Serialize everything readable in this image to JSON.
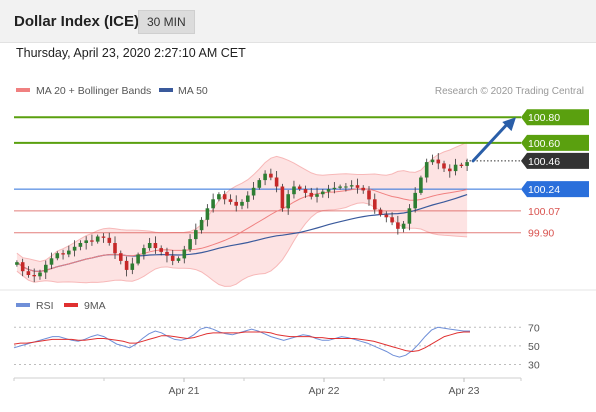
{
  "header": {
    "title": "Dollar Index (ICE)",
    "timeframe": "30 MIN",
    "timestamp": "Thursday, April 23, 2020 2:27:10 AM CET"
  },
  "colors": {
    "candle_up": "#2e7d32",
    "candle_down": "#c62828",
    "bollinger_fill": "#fde0e0",
    "ma20": "#f08080",
    "ma50": "#3a5a9c",
    "target_level": "#5aa00f",
    "pivot_level": "#2a6fdb",
    "support_level": "#d9534f",
    "current_price": "#333333",
    "arrow": "#2a5ea8",
    "rsi": "#6f8fd8",
    "rsi_ma": "#e03030"
  },
  "chart_data": [
    {
      "type": "candlestick",
      "legend": [
        {
          "name": "MA 20 + Bollinger Bands",
          "color": "#f08080"
        },
        {
          "name": "MA 50",
          "color": "#3a5a9c"
        }
      ],
      "credit": "Research © 2020 Trading Central",
      "x_ticks": [
        "Apr 21",
        "Apr 22",
        "Apr 23"
      ],
      "ylim": [
        99.5,
        100.95
      ],
      "close_series": [
        99.67,
        99.6,
        99.57,
        99.56,
        99.59,
        99.65,
        99.7,
        99.74,
        99.73,
        99.76,
        99.79,
        99.82,
        99.84,
        99.83,
        99.87,
        99.86,
        99.82,
        99.74,
        99.68,
        99.61,
        99.66,
        99.73,
        99.78,
        99.82,
        99.78,
        99.75,
        99.72,
        99.68,
        99.7,
        99.77,
        99.85,
        99.92,
        100.0,
        100.09,
        100.16,
        100.2,
        100.16,
        100.14,
        100.11,
        100.14,
        100.19,
        100.25,
        100.31,
        100.36,
        100.33,
        100.26,
        100.09,
        100.2,
        100.26,
        100.24,
        100.21,
        100.18,
        100.2,
        100.22,
        100.24,
        100.25,
        100.26,
        100.26,
        100.27,
        100.25,
        100.23,
        100.16,
        100.08,
        100.04,
        100.02,
        99.98,
        99.93,
        99.97,
        100.09,
        100.21,
        100.33,
        100.45,
        100.47,
        100.44,
        100.4,
        100.38,
        100.43,
        100.42,
        100.45
      ],
      "current_price": 100.46,
      "arrow_target": 100.8,
      "levels": [
        {
          "value": 100.8,
          "label": "100.80",
          "kind": "target"
        },
        {
          "value": 100.6,
          "label": "100.60",
          "kind": "target"
        },
        {
          "value": 100.46,
          "label": "100.46",
          "kind": "current"
        },
        {
          "value": 100.24,
          "label": "100.24",
          "kind": "pivot"
        },
        {
          "value": 100.07,
          "label": "100.07",
          "kind": "support"
        },
        {
          "value": 99.9,
          "label": "99.90",
          "kind": "support"
        }
      ]
    },
    {
      "type": "line",
      "legend": [
        {
          "name": "RSI",
          "color": "#6f8fd8"
        },
        {
          "name": "9MA",
          "color": "#e03030"
        }
      ],
      "y_ticks": [
        70,
        50,
        30
      ],
      "ylim": [
        22,
        80
      ],
      "series": [
        {
          "name": "RSI",
          "values": [
            48,
            50,
            52,
            54,
            56,
            58,
            60,
            60,
            58,
            56,
            55,
            57,
            60,
            62,
            60,
            56,
            52,
            50,
            48,
            52,
            58,
            63,
            66,
            64,
            60,
            57,
            56,
            58,
            62,
            68,
            70,
            68,
            65,
            63,
            62,
            64,
            66,
            68,
            66,
            63,
            60,
            58,
            56,
            58,
            60,
            62,
            61,
            58,
            56,
            56,
            58,
            60,
            59,
            57,
            55,
            53,
            50,
            47,
            44,
            40,
            38,
            40,
            45,
            52,
            60,
            67,
            70,
            69,
            68,
            67,
            66,
            66
          ]
        },
        {
          "name": "9MA",
          "values": [
            52,
            53,
            53,
            54,
            55,
            56,
            57,
            57,
            57,
            57,
            56,
            56,
            57,
            58,
            58,
            57,
            56,
            55,
            53,
            53,
            55,
            57,
            59,
            61,
            61,
            60,
            59,
            58,
            59,
            61,
            63,
            64,
            64,
            64,
            64,
            64,
            65,
            65,
            65,
            65,
            64,
            62,
            61,
            60,
            60,
            60,
            60,
            59,
            59,
            58,
            58,
            58,
            58,
            58,
            57,
            56,
            55,
            53,
            51,
            49,
            47,
            45,
            44,
            45,
            48,
            52,
            56,
            60,
            62,
            64,
            65,
            65
          ]
        }
      ]
    }
  ]
}
